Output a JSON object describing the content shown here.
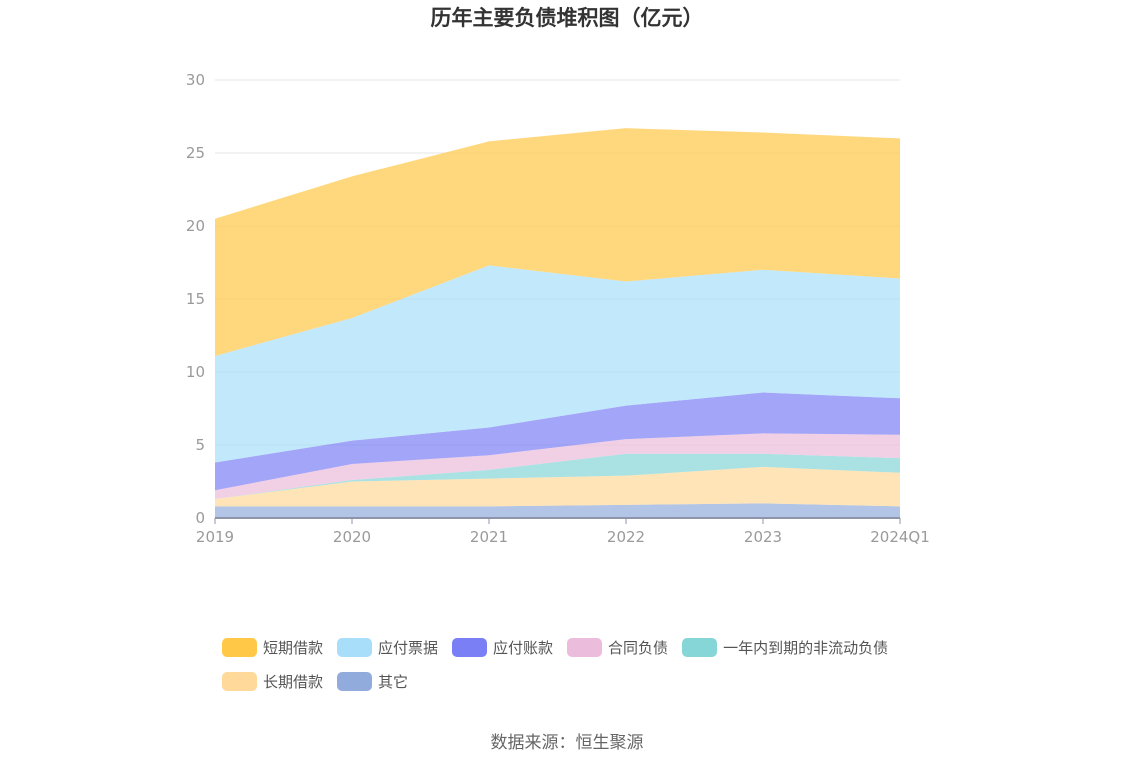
{
  "chart_data": {
    "type": "area",
    "stacked": true,
    "title": "历年主要负债堆积图（亿元）",
    "categories": [
      "2019",
      "2020",
      "2021",
      "2022",
      "2023",
      "2024Q1"
    ],
    "ylim": [
      0,
      30
    ],
    "yticks": [
      "0",
      "5",
      "10",
      "15",
      "20",
      "25",
      "30"
    ],
    "grid": true,
    "legend_position": "bottom",
    "series": [
      {
        "name": "其它",
        "color": "#91acdc",
        "values": [
          0.8,
          0.8,
          0.8,
          0.9,
          1.0,
          0.8
        ]
      },
      {
        "name": "长期借款",
        "color": "#ffd99a",
        "values": [
          0.5,
          1.7,
          1.9,
          2.0,
          2.5,
          2.3
        ]
      },
      {
        "name": "一年内到期的非流动负债",
        "color": "#86d6d8",
        "values": [
          0.0,
          0.1,
          0.6,
          1.5,
          0.9,
          1.0
        ]
      },
      {
        "name": "合同负债",
        "color": "#ebbcdc",
        "values": [
          0.6,
          1.1,
          1.0,
          1.0,
          1.4,
          1.6
        ]
      },
      {
        "name": "应付账款",
        "color": "#7b7ff5",
        "values": [
          1.9,
          1.6,
          1.9,
          2.3,
          2.8,
          2.5
        ]
      },
      {
        "name": "应付票据",
        "color": "#a8defa",
        "values": [
          7.3,
          8.4,
          11.1,
          8.5,
          8.4,
          8.2
        ]
      },
      {
        "name": "短期借款",
        "color": "#ffc847",
        "values": [
          9.4,
          9.7,
          8.5,
          10.5,
          9.4,
          9.6
        ]
      }
    ]
  },
  "legend": {
    "rows": [
      [
        "短期借款",
        "应付票据",
        "应付账款",
        "合同负债",
        "一年内到期的非流动负债"
      ],
      [
        "长期借款",
        "其它"
      ]
    ]
  },
  "source": "数据来源：恒生聚源"
}
